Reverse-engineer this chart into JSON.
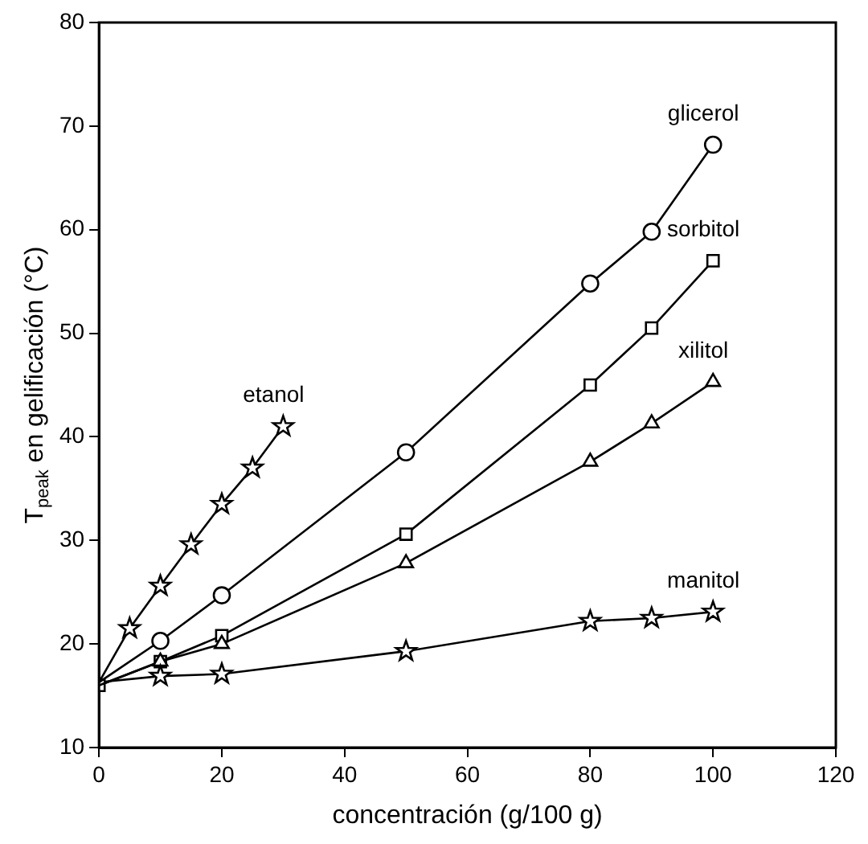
{
  "chart_data": {
    "type": "line",
    "xlabel": "concentración (g/100 g)",
    "ylabel": "T$_{peak}$ en gelificación (°C)",
    "xlim": [
      0,
      120
    ],
    "xticks": [
      0,
      20,
      40,
      60,
      80,
      100,
      120
    ],
    "ylim": [
      10,
      80
    ],
    "yticks": [
      10,
      20,
      30,
      40,
      50,
      60,
      70,
      80
    ],
    "grid": false,
    "legend": false,
    "line_style": "solid",
    "series": [
      {
        "name": "etanol",
        "color": "#000000",
        "marker": "star",
        "x": [
          0,
          5,
          10,
          15,
          20,
          25,
          30
        ],
        "values": [
          16.3,
          21.5,
          25.6,
          29.6,
          33.5,
          37,
          41
        ]
      },
      {
        "name": "glicerol",
        "color": "#000000",
        "marker": "circle",
        "x": [
          0,
          10,
          20,
          50,
          80,
          90,
          100
        ],
        "values": [
          16.3,
          20.3,
          24.7,
          38.5,
          54.8,
          59.8,
          68.2
        ]
      },
      {
        "name": "sorbitol",
        "color": "#000000",
        "marker": "square",
        "x": [
          0,
          10,
          20,
          50,
          80,
          90,
          100
        ],
        "values": [
          16,
          18.3,
          20.8,
          30.6,
          45,
          50.5,
          57
        ]
      },
      {
        "name": "xilitol",
        "color": "#000000",
        "marker": "triangle",
        "x": [
          0,
          10,
          20,
          50,
          80,
          90,
          100
        ],
        "values": [
          16,
          18.3,
          20,
          27.8,
          37.6,
          41.3,
          45.3
        ]
      },
      {
        "name": "manitol",
        "color": "#000000",
        "marker": "star",
        "x": [
          0,
          10,
          20,
          50,
          80,
          90,
          100
        ],
        "values": [
          16.3,
          16.9,
          17.1,
          19.3,
          22.2,
          22.5,
          23.1
        ]
      }
    ]
  }
}
